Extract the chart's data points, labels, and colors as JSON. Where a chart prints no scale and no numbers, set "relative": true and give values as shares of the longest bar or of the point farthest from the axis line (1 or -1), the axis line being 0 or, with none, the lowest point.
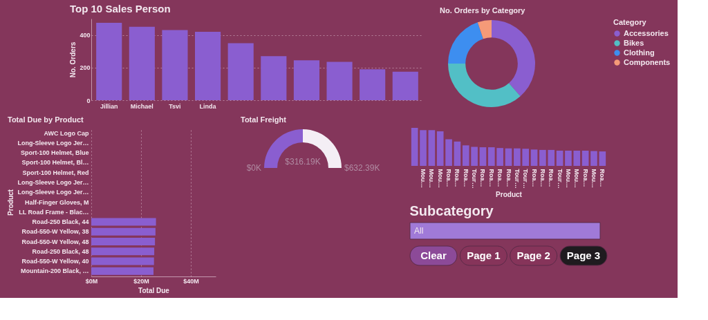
{
  "chart_data": [
    {
      "type": "bar",
      "title": "Top 10 Sales Person",
      "ylabel": "No. Orders",
      "categories": [
        "Jillian",
        "Michael",
        "Tsvi",
        "Linda",
        null,
        null,
        null,
        null,
        null,
        null
      ],
      "values": [
        475,
        450,
        430,
        420,
        350,
        270,
        245,
        235,
        190,
        175
      ],
      "color": "#8a5ed0",
      "ylim": [
        0,
        500
      ],
      "yticks": [
        0,
        200,
        400
      ],
      "grid": "y"
    },
    {
      "type": "donut",
      "title": "No. Orders by Category",
      "legend_title": "Category",
      "legend": "right",
      "categories": [
        "Accessories",
        "Bikes",
        "Clothing",
        "Components"
      ],
      "values": [
        38.5,
        36.5,
        19.8,
        5.2
      ],
      "colors": [
        "#8a5ed0",
        "#52bfc6",
        "#3d8ef0",
        "#f59a78"
      ]
    },
    {
      "type": "bar",
      "orientation": "horizontal",
      "title": "Total Due by Product",
      "xlabel": "Total Due",
      "ylabel": "Product",
      "categories": [
        "AWC Logo Cap",
        "Long-Sleeve Logo Jer…",
        "Sport-100 Helmet, Blue",
        "Sport-100 Helmet, Bl…",
        "Sport-100 Helmet, Red",
        "Long-Sleeve Logo Jer…",
        "Long-Sleeve Logo Jer…",
        "Half-Finger Gloves, M",
        "LL Road Frame - Blac…",
        "Road-250 Black, 44",
        "Road-550-W Yellow, 38",
        "Road-550-W Yellow, 48",
        "Road-250 Black, 48",
        "Road-550-W Yellow, 40",
        "Mountain-200 Black, …"
      ],
      "values": [
        null,
        null,
        null,
        null,
        null,
        null,
        null,
        null,
        null,
        26.0,
        25.8,
        25.6,
        25.3,
        25.2,
        25.0
      ],
      "color": "#8a5ed0",
      "xlim": [
        0,
        50
      ],
      "xticks": [
        {
          "value": 0,
          "label": "$0M"
        },
        {
          "value": 20,
          "label": "$20M"
        },
        {
          "value": 40,
          "label": "$40M"
        }
      ],
      "grid": "x"
    },
    {
      "type": "donut",
      "title": "Total Freight",
      "values": [
        316.19,
        316.2
      ],
      "colors": [
        "#8a5ed0",
        "#f4eef5"
      ],
      "value_labels": [
        "$316.19K",
        null
      ],
      "annotations": [
        "$0K",
        "$632.39K"
      ]
    },
    {
      "type": "bar",
      "relative": true,
      "xlabel": "Product",
      "categories": [
        null,
        "Mou…",
        "Mou…",
        "Mou…",
        "Roa…",
        "Roa…",
        "Roa…",
        "Tour…",
        "Roa…",
        "Roa…",
        "Roa…",
        "Roa…",
        "Tour…",
        "Tour…",
        "Roa…",
        "Roa…",
        "Roa…",
        "Tour…",
        "Mou…",
        "Mou…",
        "Roa…",
        "Mou…",
        "Roa…"
      ],
      "values": [
        1.0,
        0.94,
        0.94,
        0.91,
        0.7,
        0.64,
        0.54,
        0.5,
        0.49,
        0.49,
        0.47,
        0.46,
        0.46,
        0.45,
        0.43,
        0.42,
        0.42,
        0.4,
        0.4,
        0.4,
        0.4,
        0.39,
        0.38
      ],
      "color": "#8a5ed0"
    },
    {
      "type": "other",
      "title": "Subcategory",
      "annotations": [
        "All"
      ],
      "colors": [
        "#a07ad8"
      ]
    },
    {
      "type": "other",
      "annotations": [
        "Clear",
        "Page 1",
        "Page 2",
        "Page 3"
      ],
      "colors": [
        "#8c4a98",
        "#86345a",
        "#86345a",
        "#1f1b1f"
      ]
    }
  ]
}
